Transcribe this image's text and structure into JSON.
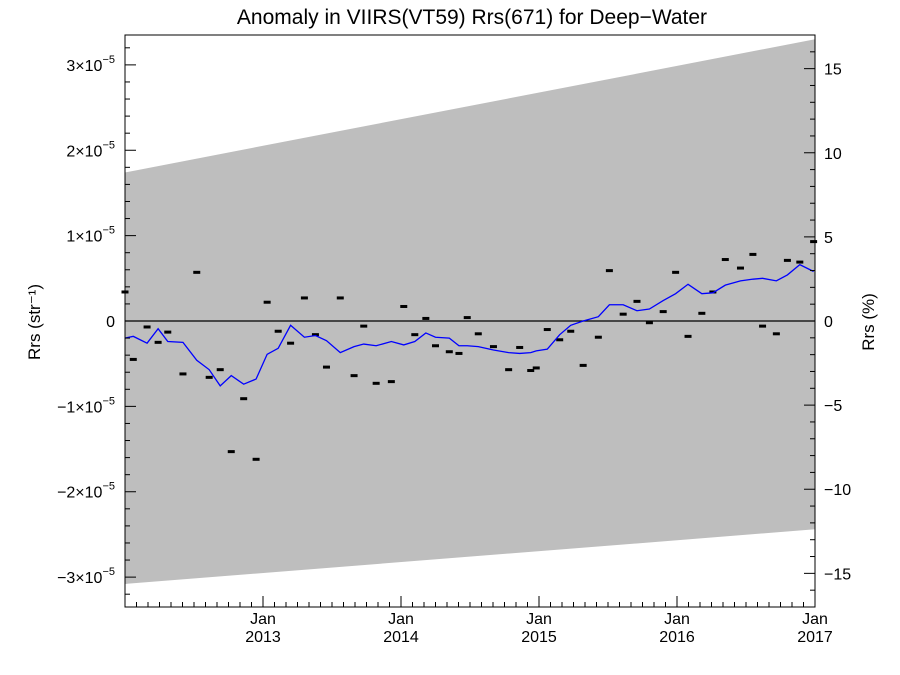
{
  "chart_data": {
    "type": "scatter",
    "title": "Anomaly in VIIRS(VT59) Rrs(671) for Deep−Water",
    "ylabel_left": "Rrs (str⁻¹)",
    "ylabel_right": "Rrs (%)",
    "xlim": [
      2012.0,
      2017.0
    ],
    "ylim": [
      -3.35e-05,
      3.35e-05
    ],
    "x_ticks": [
      {
        "x": 2013.0,
        "line1": "Jan",
        "line2": "2013"
      },
      {
        "x": 2014.0,
        "line1": "Jan",
        "line2": "2014"
      },
      {
        "x": 2015.0,
        "line1": "Jan",
        "line2": "2015"
      },
      {
        "x": 2016.0,
        "line1": "Jan",
        "line2": "2016"
      },
      {
        "x": 2017.0,
        "line1": "Jan",
        "line2": "2017"
      }
    ],
    "y_ticks_left": [
      {
        "value": 3e-05,
        "mant": "3×10",
        "exp": "−5"
      },
      {
        "value": 2e-05,
        "mant": "2×10",
        "exp": "−5"
      },
      {
        "value": 1e-05,
        "mant": "1×10",
        "exp": "−5"
      },
      {
        "value": 0,
        "mant": "0",
        "exp": ""
      },
      {
        "value": -1e-05,
        "mant": "−1×10",
        "exp": "−5"
      },
      {
        "value": -2e-05,
        "mant": "−2×10",
        "exp": "−5"
      },
      {
        "value": -3e-05,
        "mant": "−3×10",
        "exp": "−5"
      }
    ],
    "right_axis_percent_limits": [
      -17.0,
      17.0
    ],
    "y_ticks_right": [
      {
        "value": 15,
        "label": "15"
      },
      {
        "value": 10,
        "label": "10"
      },
      {
        "value": 5,
        "label": "5"
      },
      {
        "value": 0,
        "label": "0"
      },
      {
        "value": -5,
        "label": "−5"
      },
      {
        "value": -10,
        "label": "−10"
      },
      {
        "value": -15,
        "label": "−15"
      }
    ],
    "uncertainty_band": {
      "x": [
        2012.0,
        2017.0
      ],
      "upper": [
        1.74e-05,
        3.3e-05
      ],
      "lower": [
        -3.08e-05,
        -2.44e-05
      ],
      "color": "#bebebe"
    },
    "zero_line": 0,
    "series": [
      {
        "kind": "points",
        "color": "#000000",
        "x": [
          2012.0,
          2012.06,
          2012.16,
          2012.24,
          2012.31,
          2012.42,
          2012.52,
          2012.61,
          2012.69,
          2012.77,
          2012.86,
          2012.95,
          2013.03,
          2013.11,
          2013.2,
          2013.3,
          2013.38,
          2013.46,
          2013.56,
          2013.66,
          2013.73,
          2013.82,
          2013.93,
          2014.02,
          2014.1,
          2014.18,
          2014.25,
          2014.35,
          2014.42,
          2014.48,
          2014.56,
          2014.67,
          2014.78,
          2014.86,
          2014.94,
          2014.98,
          2015.06,
          2015.15,
          2015.23,
          2015.32,
          2015.43,
          2015.51,
          2015.61,
          2015.71,
          2015.8,
          2015.9,
          2015.99,
          2016.08,
          2016.18,
          2016.26,
          2016.35,
          2016.46,
          2016.55,
          2016.62,
          2016.72,
          2016.8,
          2016.89,
          2016.99
        ],
        "y": [
          3.4e-06,
          -4.5e-06,
          -7e-07,
          -2.5e-06,
          -1.3e-06,
          -6.2e-06,
          5.7e-06,
          -6.6e-06,
          -5.7e-06,
          -1.53e-05,
          -9.1e-06,
          -1.62e-05,
          2.2e-06,
          -1.2e-06,
          -2.6e-06,
          2.7e-06,
          -1.6e-06,
          -5.4e-06,
          2.7e-06,
          -6.4e-06,
          -6e-07,
          -7.3e-06,
          -7.1e-06,
          1.7e-06,
          -1.6e-06,
          3e-07,
          -2.9e-06,
          -3.6e-06,
          -3.8e-06,
          4e-07,
          -1.5e-06,
          -3e-06,
          -5.7e-06,
          -3.1e-06,
          -5.8e-06,
          -5.5e-06,
          -1e-06,
          -2.2e-06,
          -1.2e-06,
          -5.2e-06,
          -1.9e-06,
          5.9e-06,
          8e-07,
          2.3e-06,
          -2e-07,
          1.1e-06,
          5.7e-06,
          -1.8e-06,
          9e-07,
          3.4e-06,
          7.2e-06,
          6.2e-06,
          7.8e-06,
          -6e-07,
          -1.5e-06,
          7.1e-06,
          6.9e-06,
          9.3e-06
        ]
      },
      {
        "kind": "line",
        "color": "#0000ff",
        "x": [
          2012.0,
          2012.06,
          2012.16,
          2012.24,
          2012.31,
          2012.42,
          2012.52,
          2012.61,
          2012.69,
          2012.77,
          2012.86,
          2012.95,
          2013.03,
          2013.11,
          2013.2,
          2013.3,
          2013.38,
          2013.46,
          2013.56,
          2013.66,
          2013.73,
          2013.82,
          2013.93,
          2014.02,
          2014.1,
          2014.18,
          2014.25,
          2014.35,
          2014.42,
          2014.48,
          2014.56,
          2014.67,
          2014.78,
          2014.86,
          2014.94,
          2014.98,
          2015.06,
          2015.15,
          2015.23,
          2015.32,
          2015.43,
          2015.51,
          2015.61,
          2015.71,
          2015.8,
          2015.9,
          2015.99,
          2016.08,
          2016.18,
          2016.26,
          2016.35,
          2016.46,
          2016.55,
          2016.62,
          2016.72,
          2016.8,
          2016.89,
          2016.99
        ],
        "y": [
          -2e-06,
          -1.8e-06,
          -2.6e-06,
          -9e-07,
          -2.4e-06,
          -2.5e-06,
          -4.6e-06,
          -5.7e-06,
          -7.6e-06,
          -6.4e-06,
          -7.4e-06,
          -6.8e-06,
          -3.9e-06,
          -3.2e-06,
          -5e-07,
          -1.9e-06,
          -1.7e-06,
          -2.3e-06,
          -3.7e-06,
          -3e-06,
          -2.7e-06,
          -2.9e-06,
          -2.4e-06,
          -2.8e-06,
          -2.4e-06,
          -1.4e-06,
          -1.9e-06,
          -2e-06,
          -2.9e-06,
          -2.9e-06,
          -3e-06,
          -3.4e-06,
          -3.7e-06,
          -3.8e-06,
          -3.7e-06,
          -3.5e-06,
          -3.3e-06,
          -1.6e-06,
          -5e-07,
          0,
          5e-07,
          1.9e-06,
          1.9e-06,
          1.2e-06,
          1.4e-06,
          2.4e-06,
          3.2e-06,
          4.3e-06,
          3.2e-06,
          3.3e-06,
          4.2e-06,
          4.7e-06,
          4.9e-06,
          5e-06,
          4.7e-06,
          5.4e-06,
          6.6e-06,
          5.8e-06
        ]
      }
    ]
  }
}
